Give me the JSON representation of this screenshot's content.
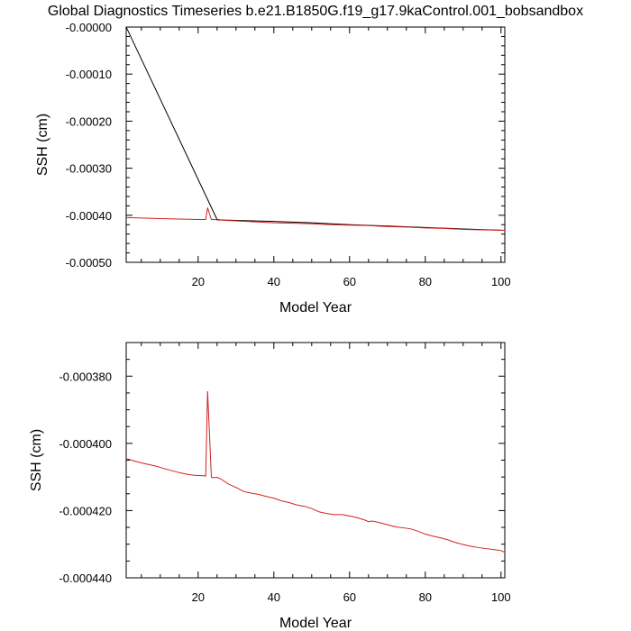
{
  "title": "Global Diagnostics Timeseries b.e21.B1850G.f19_g17.9kaControl.001_bobsandbox",
  "colors": {
    "series_black": "#000000",
    "series_red": "#d42020",
    "axis": "#000000"
  },
  "chart_data": [
    {
      "type": "line",
      "title": "",
      "xlabel": "Model Year",
      "ylabel": "SSH (cm)",
      "xlim": [
        1,
        101
      ],
      "ylim": [
        -0.0005,
        0.0
      ],
      "xticks": [
        20,
        40,
        60,
        80,
        100
      ],
      "xtick_labels": [
        "20",
        "40",
        "60",
        "80",
        "100"
      ],
      "yticks": [
        0.0,
        -0.0001,
        -0.0002,
        -0.0003,
        -0.0004,
        -0.0005
      ],
      "ytick_labels": [
        "-0.00000",
        "-0.00010",
        "-0.00020",
        "-0.00030",
        "-0.00040",
        "-0.00050"
      ],
      "x_minor_step": 5,
      "y_minor_step": 2e-05,
      "grid": false,
      "series": [
        {
          "color": "#000000",
          "x": [
            1,
            25,
            26,
            30,
            40,
            50,
            60,
            70,
            80,
            90,
            101
          ],
          "y": [
            0.0,
            -0.000409,
            -0.00041,
            -0.000411,
            -0.000413,
            -0.000416,
            -0.00042,
            -0.000423,
            -0.000426,
            -0.000429,
            -0.000432
          ]
        },
        {
          "color": "#d42020",
          "x": [
            1,
            5,
            10,
            15,
            20,
            22,
            22.5,
            23.5,
            24.5,
            25,
            30,
            35,
            40,
            45,
            50,
            55,
            60,
            65,
            70,
            75,
            80,
            85,
            90,
            95,
            101
          ],
          "y": [
            -0.000405,
            -0.000406,
            -0.000407,
            -0.000408,
            -0.000409,
            -0.000409,
            -0.000384,
            -0.000409,
            -0.000409,
            -0.00041,
            -0.000412,
            -0.000414,
            -0.000416,
            -0.000417,
            -0.000418,
            -0.00042,
            -0.000421,
            -0.000422,
            -0.000424,
            -0.000425,
            -0.000427,
            -0.000428,
            -0.00043,
            -0.000431,
            -0.000432
          ]
        }
      ]
    },
    {
      "type": "line",
      "title": "",
      "xlabel": "Model Year",
      "ylabel": "SSH (cm)",
      "xlim": [
        1,
        101
      ],
      "ylim": [
        -0.00044,
        -0.00037
      ],
      "xticks": [
        20,
        40,
        60,
        80,
        100
      ],
      "xtick_labels": [
        "20",
        "40",
        "60",
        "80",
        "100"
      ],
      "yticks": [
        -0.00038,
        -0.0004,
        -0.00042,
        -0.00044
      ],
      "ytick_labels": [
        "-0.000380",
        "-0.000400",
        "-0.000420",
        "-0.000440"
      ],
      "x_minor_step": 5,
      "y_minor_step": 5e-06,
      "grid": false,
      "series": [
        {
          "color": "#d42020",
          "x": [
            1,
            3,
            5,
            7,
            9,
            11,
            13,
            15,
            17,
            19,
            21,
            22,
            22.5,
            23.5,
            24,
            25,
            26,
            28,
            30,
            32,
            34,
            36,
            38,
            40,
            42,
            44,
            46,
            48,
            50,
            52,
            54,
            56,
            58,
            60,
            62,
            64,
            65,
            66,
            68,
            70,
            72,
            74,
            76,
            78,
            80,
            82,
            84,
            86,
            88,
            90,
            92,
            94,
            96,
            98,
            100,
            101
          ],
          "y": [
            -0.0004045,
            -0.0004052,
            -0.0004058,
            -0.0004063,
            -0.0004068,
            -0.0004075,
            -0.0004081,
            -0.0004087,
            -0.0004092,
            -0.0004095,
            -0.0004096,
            -0.0004097,
            -0.0003845,
            -0.0004101,
            -0.0004102,
            -0.0004101,
            -0.0004106,
            -0.0004121,
            -0.0004131,
            -0.0004143,
            -0.0004148,
            -0.0004152,
            -0.0004158,
            -0.0004163,
            -0.0004171,
            -0.0004176,
            -0.0004183,
            -0.0004187,
            -0.0004194,
            -0.0004204,
            -0.0004209,
            -0.0004212,
            -0.0004212,
            -0.0004216,
            -0.0004221,
            -0.0004228,
            -0.0004233,
            -0.0004231,
            -0.0004236,
            -0.0004242,
            -0.0004248,
            -0.0004251,
            -0.0004254,
            -0.0004261,
            -0.000427,
            -0.0004276,
            -0.0004281,
            -0.0004287,
            -0.0004295,
            -0.0004301,
            -0.0004306,
            -0.000431,
            -0.0004313,
            -0.0004316,
            -0.0004319,
            -0.0004324
          ]
        }
      ]
    }
  ]
}
